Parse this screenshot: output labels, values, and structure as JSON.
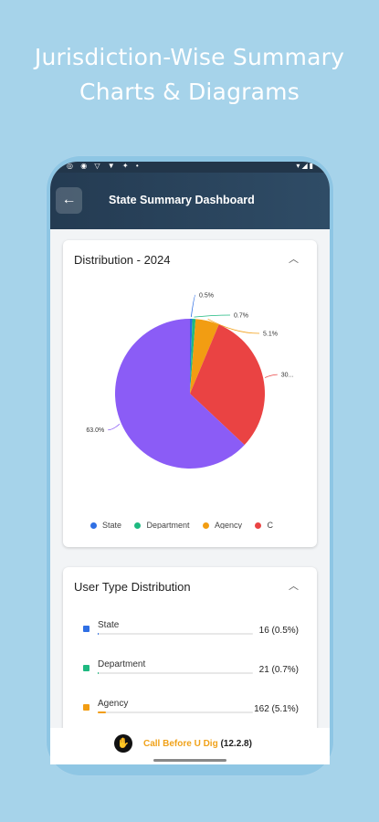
{
  "headline": {
    "line1": "Jurisdiction-Wise Summary",
    "line2": "Charts & Diagrams"
  },
  "statusbar": {
    "left_icons": "◎ ◉ ▽ ▼ ✦ •",
    "right_icons": "▾◢▮"
  },
  "appbar": {
    "back_icon": "arrow-left-icon",
    "title": "State Summary Dashboard"
  },
  "distribution_card": {
    "title": "Distribution - 2024",
    "collapse_icon": "chevron-up-icon",
    "legend": [
      {
        "label": "State",
        "color": "#2f6fe4"
      },
      {
        "label": "Department",
        "color": "#1eb980"
      },
      {
        "label": "Agency",
        "color": "#f29d12"
      },
      {
        "label": "C",
        "color": "#ea4343"
      }
    ]
  },
  "chart_data": {
    "type": "pie",
    "slices": [
      {
        "name": "State",
        "value": 0.5,
        "label": "0.5%",
        "color": "#2f6fe4"
      },
      {
        "name": "Department",
        "value": 0.7,
        "label": "0.7%",
        "color": "#1eb980"
      },
      {
        "name": "Agency",
        "value": 5.1,
        "label": "5.1%",
        "color": "#f29d12"
      },
      {
        "name": "C",
        "value": 30.7,
        "label": "30...",
        "color": "#ea4343"
      },
      {
        "name": "",
        "value": 63.0,
        "label": "63.0%",
        "color": "#8b5cf6"
      }
    ]
  },
  "user_type_card": {
    "title": "User Type Distribution",
    "collapse_icon": "chevron-up-icon",
    "rows": [
      {
        "name": "State",
        "value": "16 (0.5%)",
        "color": "#2f6fe4",
        "percent": 0.5
      },
      {
        "name": "Department",
        "value": "21 (0.7%)",
        "color": "#1eb980",
        "percent": 0.7
      },
      {
        "name": "Agency",
        "value": "162 (5.1%)",
        "color": "#f29d12",
        "percent": 5.1
      }
    ]
  },
  "footer": {
    "brand": "Call Before U Dig",
    "version": "(12.2.8)"
  }
}
